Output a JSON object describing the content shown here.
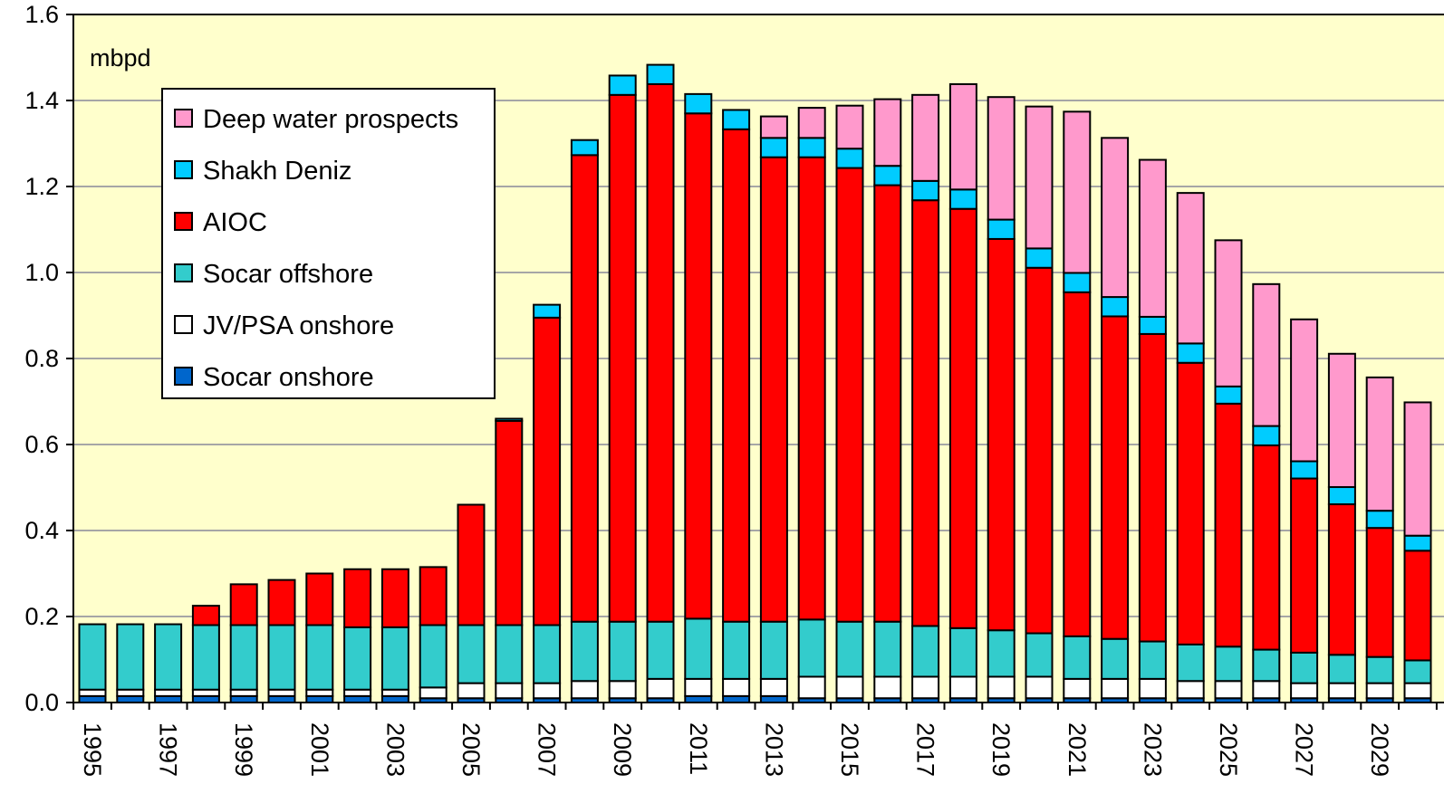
{
  "chart_data": {
    "type": "bar",
    "stacked": true,
    "unit_label": "mbpd",
    "title": "",
    "xlabel": "",
    "ylabel": "",
    "ylim": [
      0,
      1.6
    ],
    "yticks": [
      "0.0",
      "0.2",
      "0.4",
      "0.6",
      "0.8",
      "1.0",
      "1.2",
      "1.4",
      "1.6"
    ],
    "grid": true,
    "legend_position": "top-left",
    "plot_background": "#FFFFCC",
    "categories": [
      1995,
      1996,
      1997,
      1998,
      1999,
      2000,
      2001,
      2002,
      2003,
      2004,
      2005,
      2006,
      2007,
      2008,
      2009,
      2010,
      2011,
      2012,
      2013,
      2014,
      2015,
      2016,
      2017,
      2018,
      2019,
      2020,
      2021,
      2022,
      2023,
      2024,
      2025,
      2026,
      2027,
      2028,
      2029,
      2030
    ],
    "x_tick_labels": [
      "1995",
      "",
      "1997",
      "",
      "1999",
      "",
      "2001",
      "",
      "2003",
      "",
      "2005",
      "",
      "2007",
      "",
      "2009",
      "",
      "2011",
      "",
      "2013",
      "",
      "2015",
      "",
      "2017",
      "",
      "2019",
      "",
      "2021",
      "",
      "2023",
      "",
      "2025",
      "",
      "2027",
      "",
      "2029",
      ""
    ],
    "series": [
      {
        "name": "Socar onshore",
        "color": "#0066CC",
        "values": [
          0.015,
          0.015,
          0.015,
          0.015,
          0.015,
          0.015,
          0.015,
          0.015,
          0.015,
          0.01,
          0.01,
          0.01,
          0.01,
          0.01,
          0.01,
          0.01,
          0.015,
          0.015,
          0.015,
          0.01,
          0.01,
          0.01,
          0.01,
          0.01,
          0.01,
          0.01,
          0.01,
          0.01,
          0.01,
          0.01,
          0.01,
          0.01,
          0.01,
          0.01,
          0.01,
          0.01
        ]
      },
      {
        "name": "JV/PSA onshore",
        "color": "#FFFFFF",
        "values": [
          0.015,
          0.015,
          0.015,
          0.015,
          0.015,
          0.015,
          0.015,
          0.015,
          0.015,
          0.025,
          0.035,
          0.035,
          0.035,
          0.04,
          0.04,
          0.045,
          0.04,
          0.04,
          0.04,
          0.05,
          0.05,
          0.05,
          0.05,
          0.05,
          0.05,
          0.05,
          0.045,
          0.045,
          0.045,
          0.04,
          0.04,
          0.04,
          0.035,
          0.035,
          0.035,
          0.035
        ]
      },
      {
        "name": "Socar offshore",
        "color": "#33CCCC",
        "values": [
          0.152,
          0.152,
          0.152,
          0.15,
          0.15,
          0.15,
          0.15,
          0.145,
          0.145,
          0.145,
          0.135,
          0.135,
          0.135,
          0.138,
          0.138,
          0.133,
          0.14,
          0.133,
          0.133,
          0.133,
          0.128,
          0.128,
          0.118,
          0.113,
          0.108,
          0.101,
          0.099,
          0.093,
          0.087,
          0.085,
          0.08,
          0.073,
          0.071,
          0.066,
          0.061,
          0.053
        ]
      },
      {
        "name": "AIOC",
        "color": "#FF0000",
        "values": [
          0.0,
          0.0,
          0.0,
          0.045,
          0.095,
          0.105,
          0.12,
          0.135,
          0.135,
          0.135,
          0.28,
          0.475,
          0.715,
          1.085,
          1.225,
          1.25,
          1.175,
          1.145,
          1.08,
          1.075,
          1.055,
          1.015,
          0.99,
          0.975,
          0.91,
          0.85,
          0.8,
          0.75,
          0.715,
          0.655,
          0.565,
          0.475,
          0.405,
          0.35,
          0.3,
          0.255
        ]
      },
      {
        "name": "Shakh Deniz",
        "color": "#00CCFF",
        "values": [
          0.0,
          0.0,
          0.0,
          0.0,
          0.0,
          0.0,
          0.0,
          0.0,
          0.0,
          0.0,
          0.0,
          0.005,
          0.03,
          0.035,
          0.045,
          0.045,
          0.045,
          0.045,
          0.045,
          0.045,
          0.045,
          0.045,
          0.045,
          0.045,
          0.045,
          0.045,
          0.045,
          0.045,
          0.04,
          0.045,
          0.04,
          0.045,
          0.04,
          0.04,
          0.04,
          0.035
        ]
      },
      {
        "name": "Deep water prospects",
        "color": "#FF99CC",
        "values": [
          0.0,
          0.0,
          0.0,
          0.0,
          0.0,
          0.0,
          0.0,
          0.0,
          0.0,
          0.0,
          0.0,
          0.0,
          0.0,
          0.0,
          0.0,
          0.0,
          0.0,
          0.0,
          0.05,
          0.07,
          0.1,
          0.155,
          0.2,
          0.245,
          0.285,
          0.33,
          0.375,
          0.37,
          0.365,
          0.35,
          0.34,
          0.33,
          0.33,
          0.31,
          0.31,
          0.31
        ]
      }
    ],
    "legend_order": [
      "Deep water prospects",
      "Shakh Deniz",
      "AIOC",
      "Socar offshore",
      "JV/PSA onshore",
      "Socar onshore"
    ]
  }
}
